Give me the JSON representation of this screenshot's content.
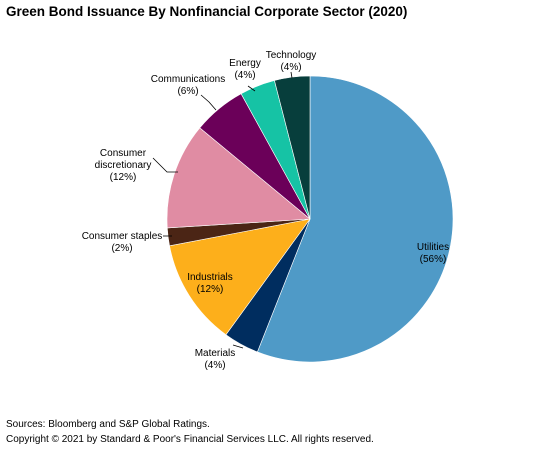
{
  "chart_data": {
    "type": "pie",
    "title": "Green Bond Issuance By Nonfinancial Corporate Sector (2020)",
    "start_at_top": true,
    "direction": "clockwise",
    "slices": [
      {
        "label": "Utilities",
        "pct_label": "(56%)",
        "value": 56,
        "color": "#4f9ac7"
      },
      {
        "label": "Materials",
        "pct_label": "(4%)",
        "value": 4,
        "color": "#002d5f"
      },
      {
        "label": "Industrials",
        "pct_label": "(12%)",
        "value": 12,
        "color": "#fdaf1b"
      },
      {
        "label": "Consumer staples",
        "pct_label": "(2%)",
        "value": 2,
        "color": "#4b2515"
      },
      {
        "label": "Consumer discretionary",
        "pct_label": "(12%)",
        "value": 12,
        "color": "#e08ca3"
      },
      {
        "label": "Communications",
        "pct_label": "(6%)",
        "value": 6,
        "color": "#6b0059"
      },
      {
        "label": "Energy",
        "pct_label": "(4%)",
        "value": 4,
        "color": "#16c3a5"
      },
      {
        "label": "Technology",
        "pct_label": "(4%)",
        "value": 4,
        "color": "#073e3c"
      }
    ]
  },
  "footer": {
    "source": "Sources: Bloomberg and S&P Global Ratings.",
    "copyright": "Copyright © 2021 by Standard & Poor's Financial Services LLC. All rights reserved."
  }
}
